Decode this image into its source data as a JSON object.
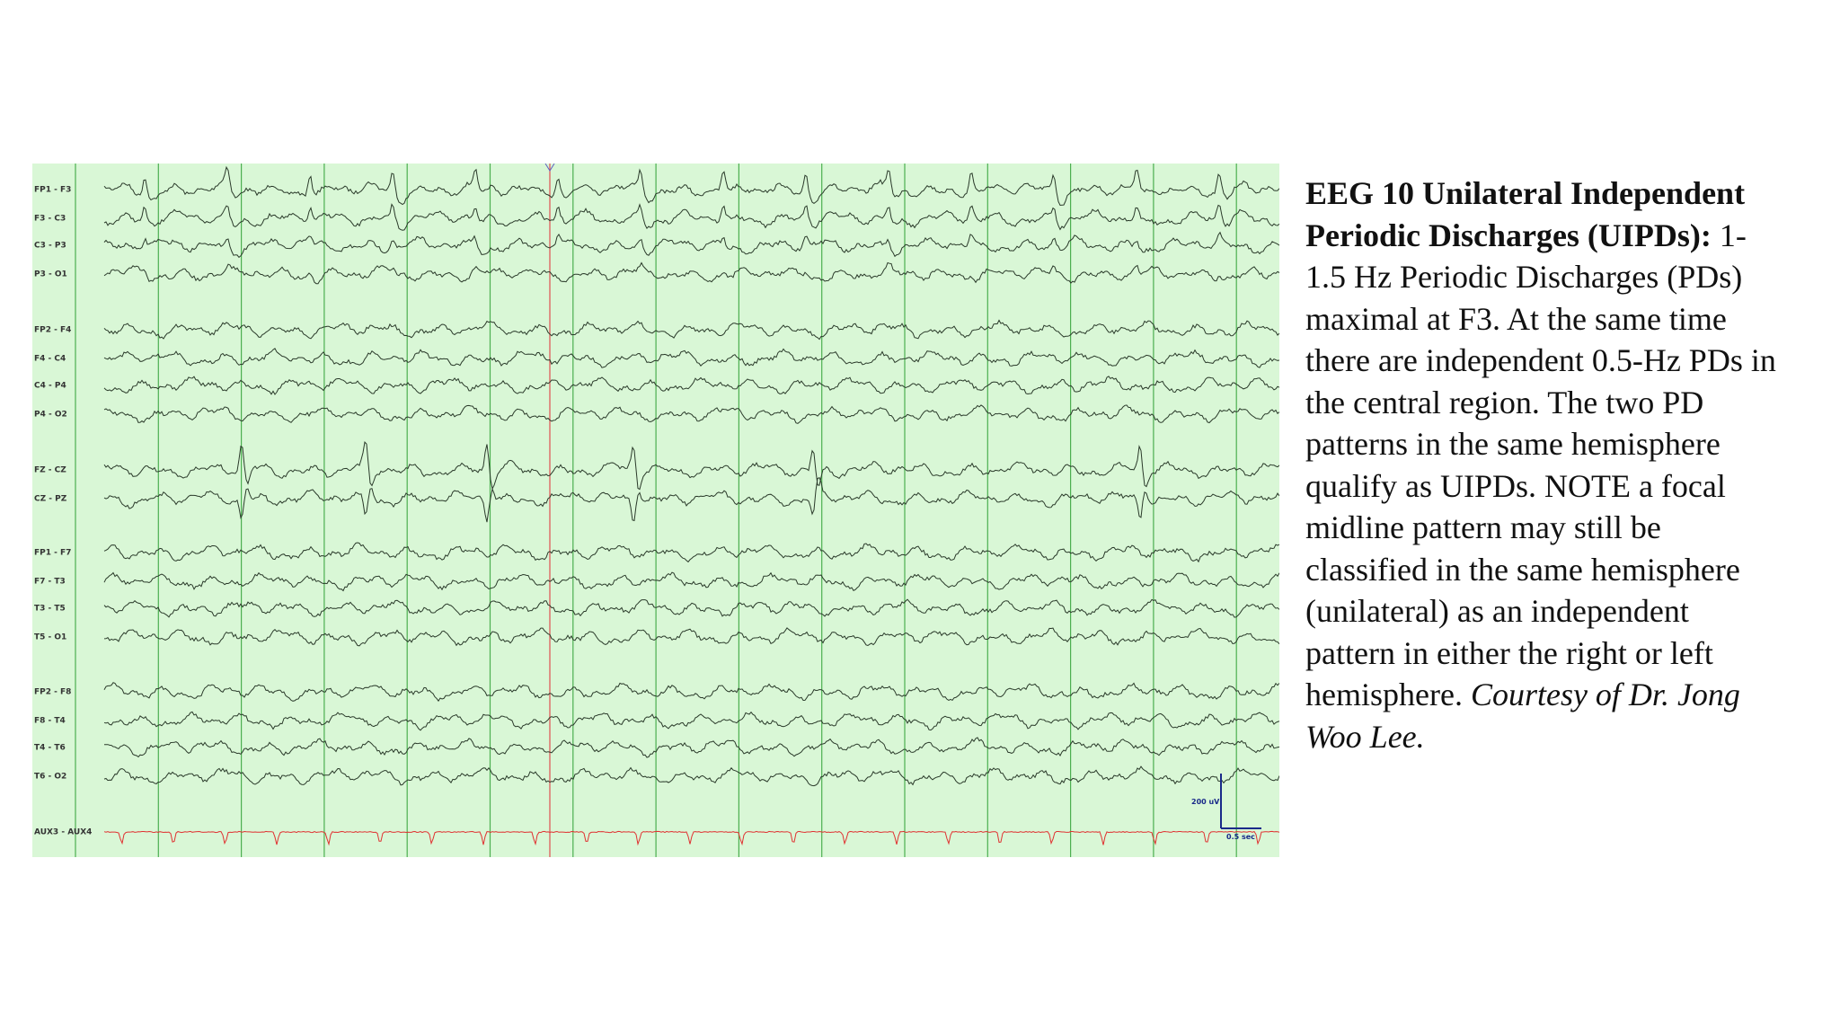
{
  "eeg": {
    "channels": [
      "FP1 - F3",
      "F3 - C3",
      "C3 - P3",
      "P3 - O1",
      "FP2 - F4",
      "F4 - C4",
      "C4 - P4",
      "P4 - O2",
      "FZ - CZ",
      "CZ - PZ",
      "FP1 - F7",
      "F7 - T3",
      "T3 - T5",
      "T5 - O1",
      "FP2 - F8",
      "F8 - T4",
      "T4 - T6",
      "T6 - O2",
      "AUX3 - AUX4"
    ],
    "scale": {
      "amplitude": "200 uV",
      "time": "0.5 sec"
    }
  },
  "caption": {
    "title": "EEG 10 Unilateral Independent Periodic Discharges (UIPDs):",
    "body": "1-1.5 Hz Periodic Discharges (PDs) maximal at F3. At the same time there are independent 0.5-Hz PDs in the central region. The two PD patterns in the same hemisphere qualify as UIPDs. NOTE a focal midline pattern may still be classified in the same hemisphere (unilateral) as an independent pattern in either the right or left hemisphere.",
    "credit": "Courtesy of Dr. Jong Woo Lee."
  }
}
